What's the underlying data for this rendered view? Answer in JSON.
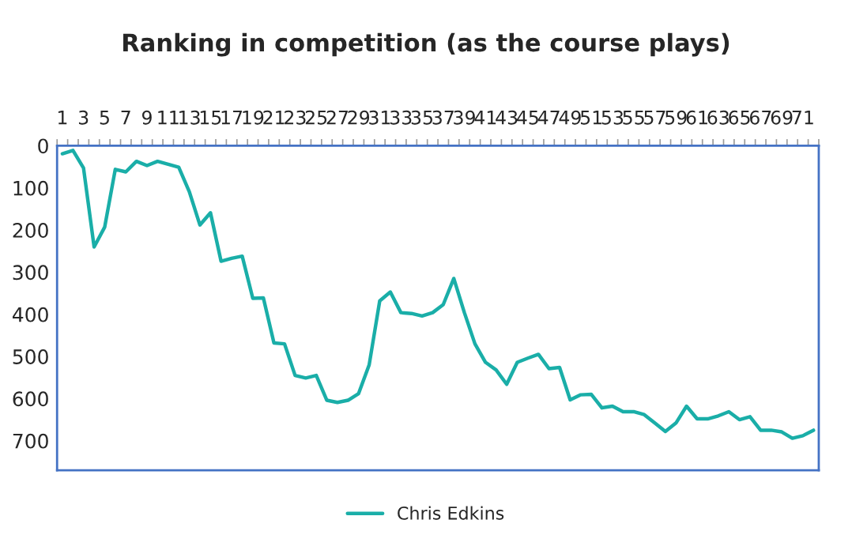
{
  "chart_data": {
    "type": "line",
    "title": "Ranking in competition (as the course plays)",
    "categories": [
      "1",
      null,
      "3",
      null,
      "5",
      null,
      "7",
      null,
      "9",
      null,
      "11",
      null,
      "13",
      null,
      "15",
      null,
      "17",
      null,
      "19",
      null,
      "21",
      null,
      "23",
      null,
      "25",
      null,
      "27",
      null,
      "29",
      null,
      "31",
      null,
      "33",
      null,
      "35",
      null,
      "37",
      null,
      "39",
      null,
      "41",
      null,
      "43",
      null,
      "45",
      null,
      "47",
      null,
      "49",
      null,
      "51",
      null,
      "53",
      null,
      "55",
      null,
      "57",
      null,
      "59",
      null,
      "61",
      null,
      "63",
      null,
      "65",
      null,
      "67",
      null,
      "69",
      null,
      "71",
      null
    ],
    "series": [
      {
        "name": "Chris Edkins",
        "color": "#1aaea8",
        "values": [
          19,
          11,
          53,
          240,
          193,
          56,
          62,
          37,
          47,
          37,
          44,
          51,
          109,
          188,
          159,
          274,
          267,
          262,
          362,
          361,
          468,
          470,
          545,
          551,
          545,
          604,
          609,
          604,
          588,
          520,
          368,
          347,
          396,
          398,
          404,
          396,
          377,
          315,
          396,
          470,
          514,
          532,
          566,
          514,
          504,
          495,
          529,
          526,
          603,
          591,
          590,
          622,
          618,
          631,
          631,
          638,
          658,
          678,
          658,
          618,
          648,
          648,
          641,
          631,
          650,
          643,
          675,
          675,
          679,
          694,
          688,
          675
        ]
      }
    ],
    "ylim": [
      770,
      0
    ],
    "yticks": [
      0,
      100,
      200,
      300,
      400,
      500,
      600,
      700
    ],
    "grid": false,
    "legend": "bottom",
    "marker": "none",
    "line_style": "solid"
  }
}
